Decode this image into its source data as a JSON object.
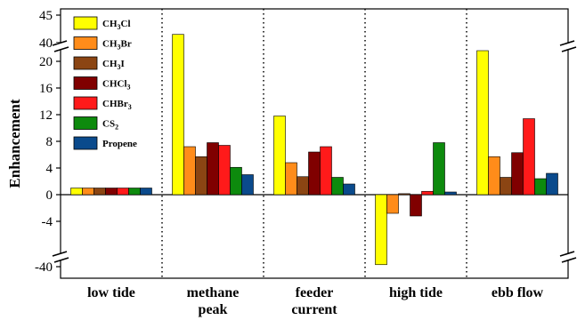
{
  "chart_data": {
    "type": "bar",
    "ylabel": "Enhancement",
    "categories": [
      [
        "low tide"
      ],
      [
        "methane",
        "peak"
      ],
      [
        "feeder",
        "current"
      ],
      [
        "high tide"
      ],
      [
        "ebb flow"
      ]
    ],
    "ylim": [
      -45,
      45
    ],
    "axis_break": {
      "lower": [
        -40,
        -6
      ],
      "upper": [
        22,
        40
      ]
    },
    "yticks": [
      -40,
      -4,
      0,
      4,
      8,
      12,
      16,
      20,
      40,
      45
    ],
    "grid": false,
    "legend_position": "top-left",
    "series": [
      {
        "name": "CH3Cl",
        "label_main": "CH",
        "label_sub": "3",
        "label_tail": "Cl",
        "color": "#ffff00",
        "values": [
          1.0,
          41.5,
          11.8,
          -38.5,
          39.0
        ]
      },
      {
        "name": "CH3Br",
        "label_main": "CH",
        "label_sub": "3",
        "label_tail": "Br",
        "color": "#ff8c1a",
        "values": [
          1.0,
          7.2,
          4.8,
          -2.8,
          5.7
        ]
      },
      {
        "name": "CH3I",
        "label_main": "CH",
        "label_sub": "3",
        "label_tail": "I",
        "color": "#8b4513",
        "values": [
          1.0,
          5.7,
          2.7,
          0.15,
          2.6
        ]
      },
      {
        "name": "CHCl3",
        "label_main": "CHCl",
        "label_sub": "3",
        "label_tail": "",
        "color": "#800000",
        "values": [
          1.0,
          7.8,
          6.4,
          -3.2,
          6.3
        ]
      },
      {
        "name": "CHBr3",
        "label_main": "CHBr",
        "label_sub": "3",
        "label_tail": "",
        "color": "#ff1a1a",
        "values": [
          1.0,
          7.4,
          7.2,
          0.5,
          11.4
        ]
      },
      {
        "name": "CS2",
        "label_main": "CS",
        "label_sub": "2",
        "label_tail": "",
        "color": "#0d8a0d",
        "values": [
          1.0,
          4.1,
          2.6,
          7.8,
          2.4
        ]
      },
      {
        "name": "Propene",
        "label_main": "Propene",
        "label_sub": "",
        "label_tail": "",
        "color": "#0a4a8c",
        "values": [
          1.0,
          3.0,
          1.6,
          0.4,
          3.2
        ]
      }
    ]
  }
}
